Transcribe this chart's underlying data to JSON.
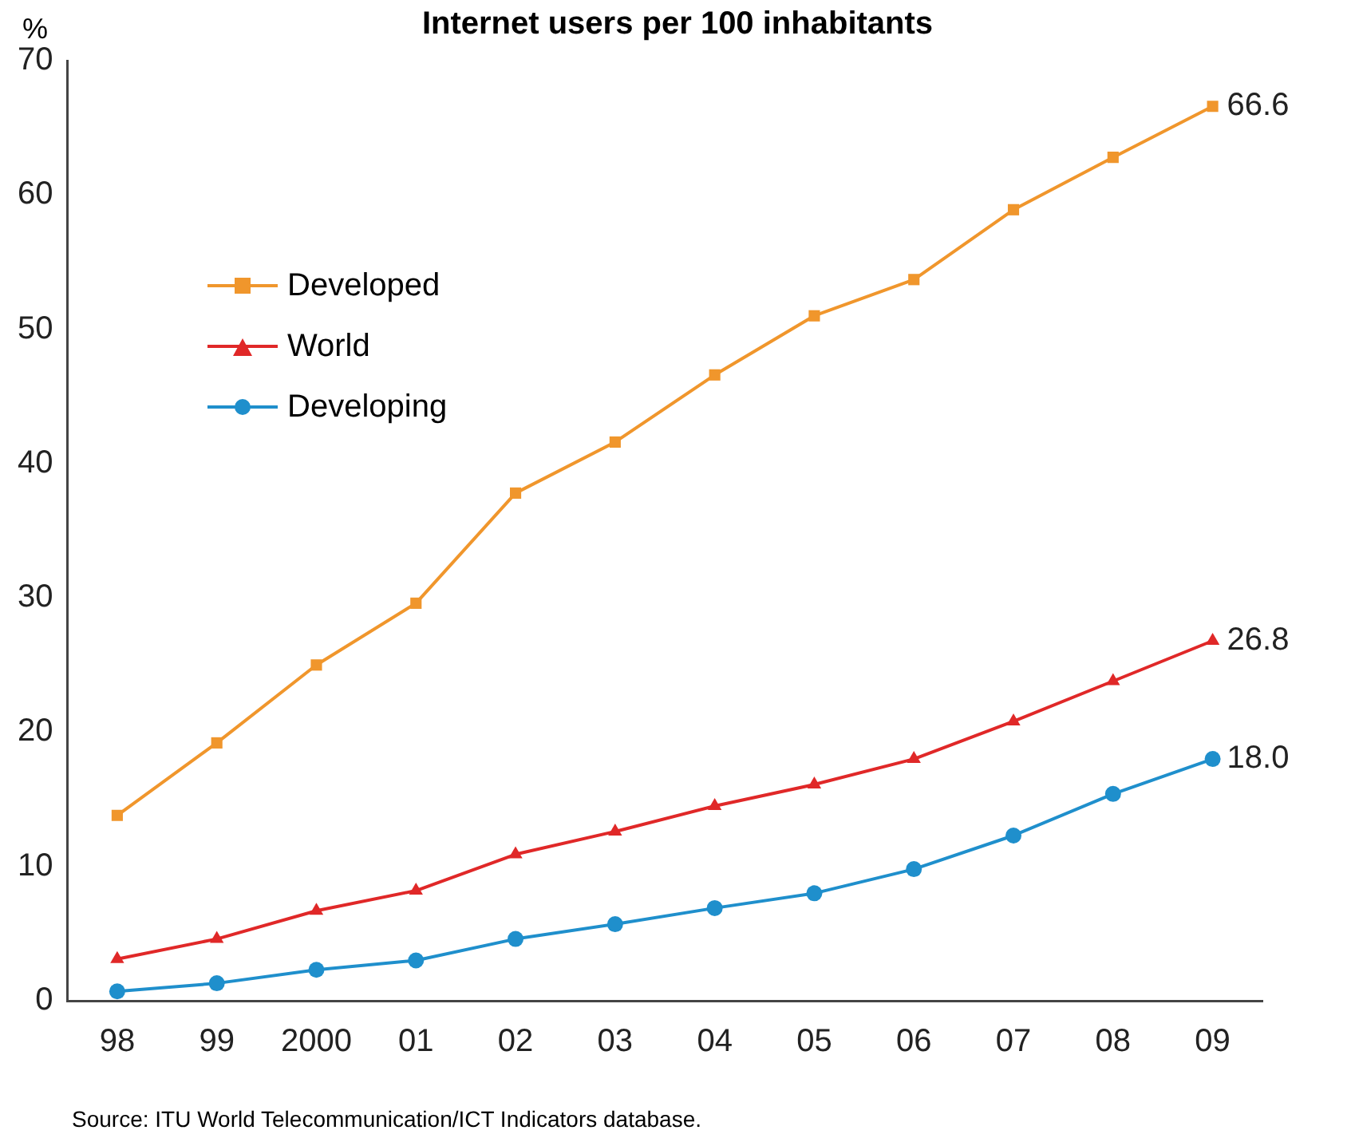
{
  "chart_data": {
    "type": "line",
    "title": "Internet users per 100 inhabitants",
    "ylabel": "%",
    "categories": [
      "98",
      "99",
      "2000",
      "01",
      "02",
      "03",
      "04",
      "05",
      "06",
      "07",
      "08",
      "09"
    ],
    "series": [
      {
        "name": "Developed",
        "color": "#f0962c",
        "marker": "square",
        "values": [
          13.8,
          19.2,
          25.0,
          29.6,
          37.8,
          41.6,
          46.6,
          51.0,
          53.7,
          58.9,
          62.8,
          66.6
        ],
        "value_labels": [
          null,
          null,
          null,
          null,
          null,
          null,
          null,
          null,
          null,
          null,
          null,
          "66.6"
        ]
      },
      {
        "name": "World",
        "color": "#e02828",
        "marker": "triangle",
        "values": [
          3.1,
          4.6,
          6.7,
          8.2,
          10.9,
          12.6,
          14.5,
          16.1,
          18.0,
          20.8,
          23.8,
          26.8
        ],
        "value_labels": [
          null,
          null,
          null,
          null,
          null,
          null,
          null,
          null,
          null,
          null,
          null,
          "26.8"
        ]
      },
      {
        "name": "Developing",
        "color": "#1f8fcc",
        "marker": "circle",
        "values": [
          0.7,
          1.3,
          2.3,
          3.0,
          4.6,
          5.7,
          6.9,
          8.0,
          9.8,
          12.3,
          15.4,
          18.0
        ],
        "value_labels": [
          null,
          null,
          null,
          null,
          null,
          null,
          null,
          null,
          null,
          null,
          null,
          "18.0"
        ]
      }
    ],
    "ylim": [
      0,
      70
    ],
    "yticks": [
      0,
      10,
      20,
      30,
      40,
      50,
      60,
      70
    ],
    "grid": false,
    "legend": "top left",
    "line_style": "solid",
    "annotations": [
      "Source: ITU World Telecommunication/ICT Indicators database."
    ]
  }
}
